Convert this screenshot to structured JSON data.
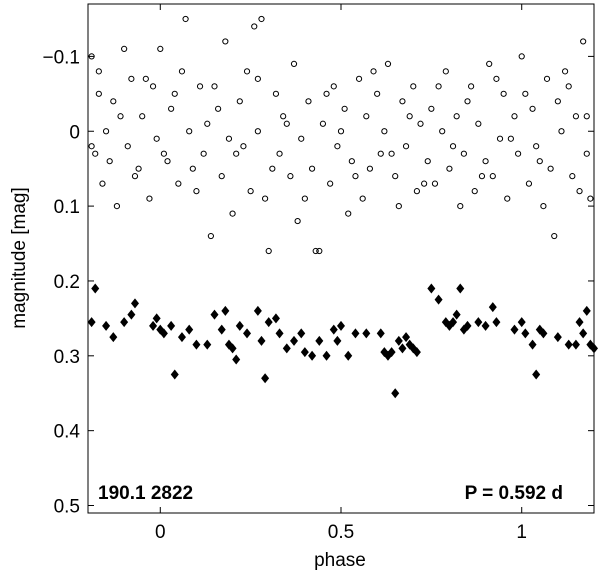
{
  "chart_data": {
    "type": "scatter",
    "xlabel": "phase",
    "ylabel": "magnitude  [mag]",
    "xlim": [
      -0.2,
      1.2
    ],
    "ylim": [
      -0.17,
      0.51
    ],
    "y_inverted": true,
    "x_ticks": [
      0,
      0.5,
      1
    ],
    "x_tick_labels": [
      "0",
      "0.5",
      "1"
    ],
    "y_ticks": [
      -0.1,
      0,
      0.1,
      0.2,
      0.3,
      0.4,
      0.5
    ],
    "y_tick_labels": [
      "−0.1",
      "0",
      "0.1",
      "0.2",
      "0.3",
      "0.4",
      "0.5"
    ],
    "grid": false,
    "annotations": {
      "star_id": "190.1 2822",
      "period": "P = 0.592 d"
    },
    "series": [
      {
        "marker": "open-circle",
        "color": "#000000",
        "points": [
          [
            -0.19,
            -0.1
          ],
          [
            -0.18,
            0.03
          ],
          [
            -0.17,
            -0.05
          ],
          [
            -0.16,
            0.07
          ],
          [
            -0.15,
            0.0
          ],
          [
            -0.13,
            -0.04
          ],
          [
            -0.12,
            0.1
          ],
          [
            -0.1,
            -0.11
          ],
          [
            -0.09,
            0.02
          ],
          [
            -0.08,
            -0.07
          ],
          [
            -0.06,
            0.05
          ],
          [
            -0.05,
            -0.02
          ],
          [
            -0.03,
            0.09
          ],
          [
            -0.02,
            -0.06
          ],
          [
            -0.01,
            0.01
          ],
          [
            0.0,
            -0.11
          ],
          [
            0.02,
            0.04
          ],
          [
            0.03,
            -0.03
          ],
          [
            0.05,
            0.07
          ],
          [
            0.06,
            -0.08
          ],
          [
            0.07,
            -0.15
          ],
          [
            0.08,
            0.0
          ],
          [
            0.09,
            0.05
          ],
          [
            0.11,
            -0.06
          ],
          [
            0.12,
            0.03
          ],
          [
            0.13,
            -0.01
          ],
          [
            0.14,
            0.14
          ],
          [
            0.16,
            -0.03
          ],
          [
            0.17,
            0.06
          ],
          [
            0.18,
            -0.12
          ],
          [
            0.19,
            0.01
          ],
          [
            0.2,
            0.11
          ],
          [
            0.22,
            -0.04
          ],
          [
            0.23,
            0.02
          ],
          [
            0.24,
            -0.08
          ],
          [
            0.25,
            0.08
          ],
          [
            0.26,
            -0.14
          ],
          [
            0.27,
            0.0
          ],
          [
            0.28,
            -0.15
          ],
          [
            0.29,
            0.09
          ],
          [
            0.3,
            0.16
          ],
          [
            0.32,
            -0.05
          ],
          [
            0.33,
            0.03
          ],
          [
            0.34,
            -0.02
          ],
          [
            0.36,
            0.06
          ],
          [
            0.37,
            -0.09
          ],
          [
            0.38,
            0.12
          ],
          [
            0.39,
            0.01
          ],
          [
            0.41,
            -0.04
          ],
          [
            0.42,
            0.05
          ],
          [
            0.43,
            0.16
          ],
          [
            0.44,
            0.16
          ],
          [
            0.45,
            -0.01
          ],
          [
            0.47,
            0.07
          ],
          [
            0.48,
            -0.06
          ],
          [
            0.49,
            0.02
          ],
          [
            0.51,
            -0.03
          ],
          [
            0.52,
            0.11
          ],
          [
            0.53,
            0.04
          ],
          [
            0.55,
            -0.07
          ],
          [
            0.56,
            0.09
          ],
          [
            0.57,
            -0.02
          ],
          [
            0.58,
            0.05
          ],
          [
            0.6,
            -0.05
          ],
          [
            0.61,
            0.03
          ],
          [
            0.62,
            0.0
          ],
          [
            0.63,
            -0.09
          ],
          [
            0.65,
            0.06
          ],
          [
            0.66,
            0.1
          ],
          [
            0.67,
            -0.04
          ],
          [
            0.68,
            0.02
          ],
          [
            0.7,
            -0.06
          ],
          [
            0.71,
            0.08
          ],
          [
            0.72,
            -0.01
          ],
          [
            0.74,
            0.04
          ],
          [
            0.75,
            -0.03
          ],
          [
            0.76,
            0.07
          ],
          [
            0.78,
            0.0
          ],
          [
            0.79,
            -0.08
          ],
          [
            0.8,
            0.05
          ],
          [
            0.82,
            -0.02
          ],
          [
            0.83,
            0.1
          ],
          [
            0.84,
            0.03
          ],
          [
            0.86,
            -0.06
          ],
          [
            0.87,
            0.08
          ],
          [
            0.88,
            -0.01
          ],
          [
            0.9,
            0.04
          ],
          [
            0.91,
            -0.09
          ],
          [
            0.92,
            0.06
          ],
          [
            0.94,
            0.01
          ],
          [
            0.95,
            -0.05
          ],
          [
            0.96,
            0.09
          ],
          [
            0.98,
            -0.02
          ],
          [
            0.99,
            0.03
          ],
          [
            1.0,
            -0.1
          ],
          [
            1.02,
            0.07
          ],
          [
            1.03,
            -0.03
          ],
          [
            1.04,
            0.02
          ],
          [
            1.06,
            0.1
          ],
          [
            1.07,
            -0.07
          ],
          [
            1.08,
            0.05
          ],
          [
            1.09,
            0.14
          ],
          [
            1.1,
            -0.04
          ],
          [
            1.11,
            0.0
          ],
          [
            1.12,
            -0.08
          ],
          [
            1.14,
            0.06
          ],
          [
            1.15,
            -0.02
          ],
          [
            1.16,
            0.08
          ],
          [
            1.17,
            -0.12
          ],
          [
            1.18,
            0.03
          ],
          [
            1.19,
            0.09
          ],
          [
            -0.19,
            0.02
          ],
          [
            -0.17,
            -0.08
          ],
          [
            -0.14,
            0.04
          ],
          [
            -0.11,
            -0.02
          ],
          [
            -0.07,
            0.06
          ],
          [
            -0.04,
            -0.07
          ],
          [
            0.01,
            0.03
          ],
          [
            0.04,
            -0.05
          ],
          [
            0.1,
            0.08
          ],
          [
            0.15,
            -0.06
          ],
          [
            0.21,
            0.03
          ],
          [
            0.27,
            -0.07
          ],
          [
            0.31,
            0.05
          ],
          [
            0.35,
            -0.01
          ],
          [
            0.4,
            0.09
          ],
          [
            0.46,
            -0.05
          ],
          [
            0.5,
            0.0
          ],
          [
            0.54,
            0.06
          ],
          [
            0.59,
            -0.08
          ],
          [
            0.64,
            0.03
          ],
          [
            0.69,
            -0.02
          ],
          [
            0.73,
            0.07
          ],
          [
            0.77,
            -0.06
          ],
          [
            0.81,
            0.02
          ],
          [
            0.85,
            -0.04
          ],
          [
            0.89,
            0.06
          ],
          [
            0.93,
            -0.07
          ],
          [
            0.97,
            0.01
          ],
          [
            1.01,
            -0.05
          ],
          [
            1.05,
            0.04
          ],
          [
            1.13,
            -0.06
          ],
          [
            1.18,
            -0.02
          ]
        ]
      },
      {
        "marker": "filled-diamond",
        "color": "#000000",
        "points": [
          [
            -0.18,
            0.21
          ],
          [
            -0.19,
            0.255
          ],
          [
            -0.15,
            0.26
          ],
          [
            -0.13,
            0.275
          ],
          [
            -0.1,
            0.255
          ],
          [
            -0.08,
            0.245
          ],
          [
            -0.07,
            0.23
          ],
          [
            -0.02,
            0.26
          ],
          [
            -0.01,
            0.25
          ],
          [
            0.0,
            0.265
          ],
          [
            0.01,
            0.27
          ],
          [
            0.03,
            0.26
          ],
          [
            0.04,
            0.325
          ],
          [
            0.06,
            0.275
          ],
          [
            0.08,
            0.265
          ],
          [
            0.1,
            0.285
          ],
          [
            0.13,
            0.285
          ],
          [
            0.15,
            0.245
          ],
          [
            0.17,
            0.265
          ],
          [
            0.18,
            0.24
          ],
          [
            0.19,
            0.285
          ],
          [
            0.2,
            0.29
          ],
          [
            0.21,
            0.305
          ],
          [
            0.22,
            0.26
          ],
          [
            0.24,
            0.27
          ],
          [
            0.27,
            0.24
          ],
          [
            0.28,
            0.28
          ],
          [
            0.29,
            0.33
          ],
          [
            0.3,
            0.255
          ],
          [
            0.32,
            0.25
          ],
          [
            0.33,
            0.27
          ],
          [
            0.35,
            0.29
          ],
          [
            0.37,
            0.28
          ],
          [
            0.39,
            0.27
          ],
          [
            0.4,
            0.295
          ],
          [
            0.42,
            0.3
          ],
          [
            0.44,
            0.28
          ],
          [
            0.46,
            0.3
          ],
          [
            0.48,
            0.265
          ],
          [
            0.49,
            0.28
          ],
          [
            0.5,
            0.26
          ],
          [
            0.52,
            0.3
          ],
          [
            0.54,
            0.27
          ],
          [
            0.57,
            0.27
          ],
          [
            0.61,
            0.27
          ],
          [
            0.62,
            0.295
          ],
          [
            0.63,
            0.3
          ],
          [
            0.64,
            0.295
          ],
          [
            0.65,
            0.35
          ],
          [
            0.66,
            0.28
          ],
          [
            0.67,
            0.29
          ],
          [
            0.68,
            0.275
          ],
          [
            0.69,
            0.285
          ],
          [
            0.7,
            0.29
          ],
          [
            0.71,
            0.295
          ],
          [
            0.75,
            0.21
          ],
          [
            0.77,
            0.225
          ],
          [
            0.79,
            0.255
          ],
          [
            0.8,
            0.26
          ],
          [
            0.81,
            0.255
          ],
          [
            0.82,
            0.245
          ],
          [
            0.83,
            0.21
          ],
          [
            0.84,
            0.265
          ],
          [
            0.85,
            0.26
          ],
          [
            0.88,
            0.255
          ],
          [
            0.9,
            0.26
          ],
          [
            0.92,
            0.235
          ],
          [
            0.93,
            0.255
          ],
          [
            0.98,
            0.265
          ],
          [
            1.0,
            0.255
          ],
          [
            1.01,
            0.27
          ],
          [
            1.03,
            0.285
          ],
          [
            1.05,
            0.265
          ],
          [
            1.06,
            0.27
          ],
          [
            1.04,
            0.325
          ],
          [
            1.1,
            0.275
          ],
          [
            1.13,
            0.285
          ],
          [
            1.15,
            0.285
          ],
          [
            1.16,
            0.255
          ],
          [
            1.17,
            0.27
          ],
          [
            1.18,
            0.24
          ],
          [
            1.19,
            0.285
          ],
          [
            1.2,
            0.29
          ]
        ]
      }
    ]
  }
}
